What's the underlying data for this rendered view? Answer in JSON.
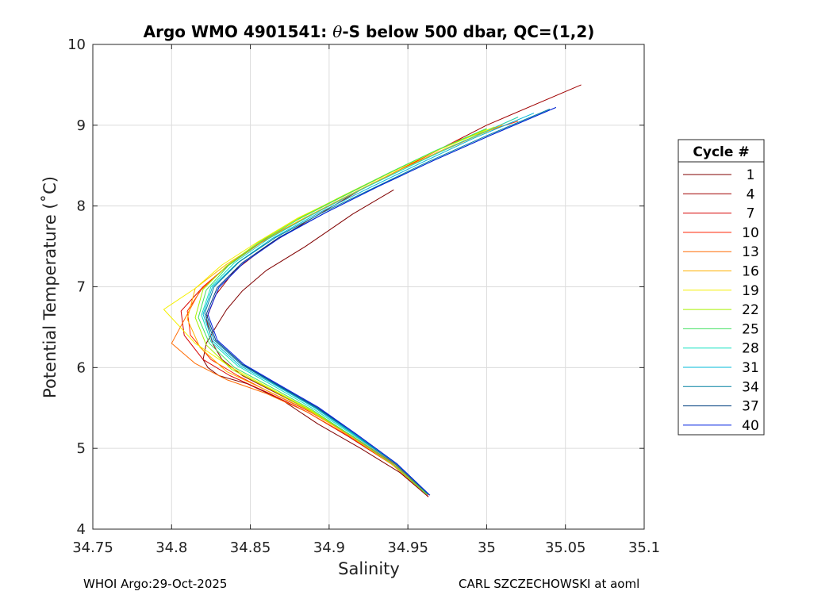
{
  "chart_data": {
    "type": "line",
    "title_prefix": "Argo WMO 4901541: ",
    "title_theta": "θ",
    "title_suffix": "-S below 500 dbar,  QC=(1,2)",
    "xlabel": "Salinity",
    "ylabel": "Potential Temperature (˚C)",
    "xlim": [
      34.75,
      35.1
    ],
    "ylim": [
      4,
      10
    ],
    "xticks": [
      34.75,
      34.8,
      34.85,
      34.9,
      34.95,
      35,
      35.05,
      35.1
    ],
    "xtick_labels": [
      "34.75",
      "34.8",
      "34.85",
      "34.9",
      "34.95",
      "35",
      "35.05",
      "35.1"
    ],
    "yticks": [
      4,
      5,
      6,
      7,
      8,
      9,
      10
    ],
    "ytick_labels": [
      "4",
      "5",
      "6",
      "7",
      "8",
      "9",
      "10"
    ],
    "grid": true,
    "legend_title": "Cycle #",
    "legend_position": "right-outside",
    "legend": [
      {
        "label": "1",
        "color": "#800000"
      },
      {
        "label": "4",
        "color": "#a00000"
      },
      {
        "label": "7",
        "color": "#d50000"
      },
      {
        "label": "10",
        "color": "#ff2000"
      },
      {
        "label": "13",
        "color": "#ff6a00"
      },
      {
        "label": "16",
        "color": "#ffb000"
      },
      {
        "label": "19",
        "color": "#f5f000"
      },
      {
        "label": "22",
        "color": "#a8f000"
      },
      {
        "label": "25",
        "color": "#40e060"
      },
      {
        "label": "28",
        "color": "#10e0c0"
      },
      {
        "label": "31",
        "color": "#00b8d8"
      },
      {
        "label": "34",
        "color": "#0080a0"
      },
      {
        "label": "37",
        "color": "#004080"
      },
      {
        "label": "40",
        "color": "#0020e0"
      }
    ],
    "series": [
      {
        "name": "1",
        "color": "#800000",
        "s": [
          34.941,
          34.915,
          34.9,
          34.885,
          34.86,
          34.845,
          34.835,
          34.828,
          34.822,
          34.82,
          34.823,
          34.83,
          34.848,
          34.87,
          34.893,
          34.92,
          34.945,
          34.963
        ],
        "t": [
          8.2,
          7.9,
          7.7,
          7.5,
          7.2,
          6.95,
          6.72,
          6.5,
          6.3,
          6.1,
          6.0,
          5.9,
          5.8,
          5.6,
          5.3,
          5.0,
          4.7,
          4.4
        ]
      },
      {
        "name": "4",
        "color": "#a00000",
        "s": [
          35.06,
          35.0,
          34.96,
          34.92,
          34.885,
          34.86,
          34.84,
          34.828,
          34.822,
          34.826,
          34.832,
          34.845,
          34.865,
          34.89,
          34.915,
          34.94,
          34.963
        ],
        "t": [
          9.5,
          9.0,
          8.6,
          8.2,
          7.8,
          7.5,
          7.2,
          6.9,
          6.6,
          6.3,
          6.1,
          5.9,
          5.7,
          5.45,
          5.15,
          4.8,
          4.4
        ]
      },
      {
        "name": "7",
        "color": "#d50000",
        "s": [
          34.985,
          34.95,
          34.92,
          34.89,
          34.86,
          34.838,
          34.82,
          34.806,
          34.808,
          34.82,
          34.837,
          34.86,
          34.886,
          34.912,
          34.94,
          34.962
        ],
        "t": [
          8.85,
          8.5,
          8.2,
          7.9,
          7.6,
          7.3,
          7.0,
          6.7,
          6.4,
          6.1,
          5.9,
          5.7,
          5.45,
          5.15,
          4.8,
          4.45
        ]
      },
      {
        "name": "10",
        "color": "#ff2000",
        "s": [
          35.02,
          34.98,
          34.95,
          34.92,
          34.89,
          34.86,
          34.838,
          34.82,
          34.81,
          34.812,
          34.825,
          34.842,
          34.862,
          34.888,
          34.915,
          34.942,
          34.963
        ],
        "t": [
          9.05,
          8.8,
          8.5,
          8.2,
          7.9,
          7.6,
          7.3,
          7.0,
          6.7,
          6.4,
          6.1,
          5.9,
          5.7,
          5.45,
          5.15,
          4.8,
          4.42
        ]
      },
      {
        "name": "13",
        "color": "#ff6a00",
        "s": [
          35.02,
          34.98,
          34.945,
          34.915,
          34.885,
          34.857,
          34.835,
          34.818,
          34.8,
          34.815,
          34.835,
          34.86,
          34.886,
          34.913,
          34.94,
          34.962
        ],
        "t": [
          9.1,
          8.75,
          8.45,
          8.15,
          7.85,
          7.55,
          7.25,
          6.95,
          6.3,
          6.05,
          5.85,
          5.68,
          5.45,
          5.15,
          4.8,
          4.43
        ]
      },
      {
        "name": "16",
        "color": "#ffb000",
        "s": [
          35.01,
          34.975,
          34.943,
          34.913,
          34.885,
          34.858,
          34.835,
          34.815,
          34.81,
          34.818,
          34.835,
          34.86,
          34.887,
          34.913,
          34.94,
          34.962
        ],
        "t": [
          9.0,
          8.72,
          8.43,
          8.14,
          7.86,
          7.57,
          7.28,
          6.98,
          6.6,
          6.25,
          5.95,
          5.72,
          5.47,
          5.16,
          4.8,
          4.43
        ]
      },
      {
        "name": "19",
        "color": "#f5f000",
        "s": [
          35.005,
          34.97,
          34.94,
          34.91,
          34.88,
          34.855,
          34.832,
          34.815,
          34.795,
          34.815,
          34.838,
          34.862,
          34.888,
          34.914,
          34.941,
          34.962
        ],
        "t": [
          8.98,
          8.7,
          8.42,
          8.13,
          7.85,
          7.56,
          7.27,
          6.98,
          6.72,
          6.3,
          6.0,
          5.75,
          5.48,
          5.16,
          4.8,
          4.43
        ]
      },
      {
        "name": "22",
        "color": "#a8f000",
        "s": [
          35.0,
          34.967,
          34.937,
          34.908,
          34.88,
          34.855,
          34.835,
          34.82,
          34.815,
          34.822,
          34.838,
          34.862,
          34.888,
          34.914,
          34.941,
          34.962
        ],
        "t": [
          8.95,
          8.68,
          8.4,
          8.12,
          7.84,
          7.55,
          7.26,
          6.97,
          6.62,
          6.28,
          5.98,
          5.74,
          5.47,
          5.16,
          4.8,
          4.43
        ]
      },
      {
        "name": "25",
        "color": "#40e060",
        "s": [
          35.0,
          34.968,
          34.938,
          34.909,
          34.881,
          34.856,
          34.836,
          34.822,
          34.817,
          34.824,
          34.84,
          34.863,
          34.889,
          34.914,
          34.941,
          34.962
        ],
        "t": [
          8.96,
          8.69,
          8.41,
          8.12,
          7.84,
          7.55,
          7.26,
          6.96,
          6.62,
          6.3,
          6.0,
          5.76,
          5.48,
          5.16,
          4.8,
          4.43
        ]
      },
      {
        "name": "28",
        "color": "#10e0c0",
        "s": [
          35.02,
          34.985,
          34.952,
          34.92,
          34.89,
          34.862,
          34.84,
          34.825,
          34.819,
          34.825,
          34.842,
          34.865,
          34.89,
          34.915,
          34.942,
          34.963
        ],
        "t": [
          9.1,
          8.8,
          8.5,
          8.2,
          7.9,
          7.6,
          7.3,
          7.0,
          6.65,
          6.32,
          6.02,
          5.77,
          5.49,
          5.17,
          4.81,
          4.43
        ]
      },
      {
        "name": "31",
        "color": "#00b8d8",
        "s": [
          35.03,
          34.992,
          34.958,
          34.925,
          34.893,
          34.864,
          34.842,
          34.826,
          34.82,
          34.826,
          34.843,
          34.866,
          34.891,
          34.916,
          34.942,
          34.963
        ],
        "t": [
          9.15,
          8.84,
          8.53,
          8.22,
          7.91,
          7.6,
          7.3,
          7.0,
          6.66,
          6.33,
          6.03,
          5.78,
          5.5,
          5.17,
          4.81,
          4.43
        ]
      },
      {
        "name": "34",
        "color": "#0080a0",
        "s": [
          35.04,
          35.0,
          34.963,
          34.929,
          34.896,
          34.866,
          34.843,
          34.827,
          34.821,
          34.827,
          34.844,
          34.867,
          34.892,
          34.916,
          34.942,
          34.963
        ],
        "t": [
          9.2,
          8.87,
          8.55,
          8.23,
          7.92,
          7.61,
          7.31,
          7.0,
          6.67,
          6.34,
          6.04,
          5.78,
          5.5,
          5.18,
          4.81,
          4.43
        ]
      },
      {
        "name": "37",
        "color": "#004080",
        "s": [
          35.044,
          35.003,
          34.966,
          34.931,
          34.898,
          34.868,
          34.845,
          34.829,
          34.822,
          34.828,
          34.845,
          34.867,
          34.892,
          34.917,
          34.943,
          34.964
        ],
        "t": [
          9.22,
          8.88,
          8.56,
          8.24,
          7.92,
          7.61,
          7.3,
          6.99,
          6.66,
          6.34,
          6.04,
          5.79,
          5.51,
          5.18,
          4.81,
          4.42
        ]
      },
      {
        "name": "40",
        "color": "#0020e0",
        "s": [
          35.044,
          35.003,
          34.966,
          34.931,
          34.898,
          34.869,
          34.846,
          34.83,
          34.823,
          34.829,
          34.846,
          34.868,
          34.893,
          34.917,
          34.943,
          34.964
        ],
        "t": [
          9.22,
          8.88,
          8.56,
          8.24,
          7.92,
          7.61,
          7.3,
          6.99,
          6.66,
          6.34,
          6.04,
          5.79,
          5.51,
          5.18,
          4.81,
          4.42
        ]
      }
    ]
  },
  "footer": {
    "left": "WHOI Argo:29-Oct-2025",
    "right": "CARL SZCZECHOWSKI at aoml"
  }
}
